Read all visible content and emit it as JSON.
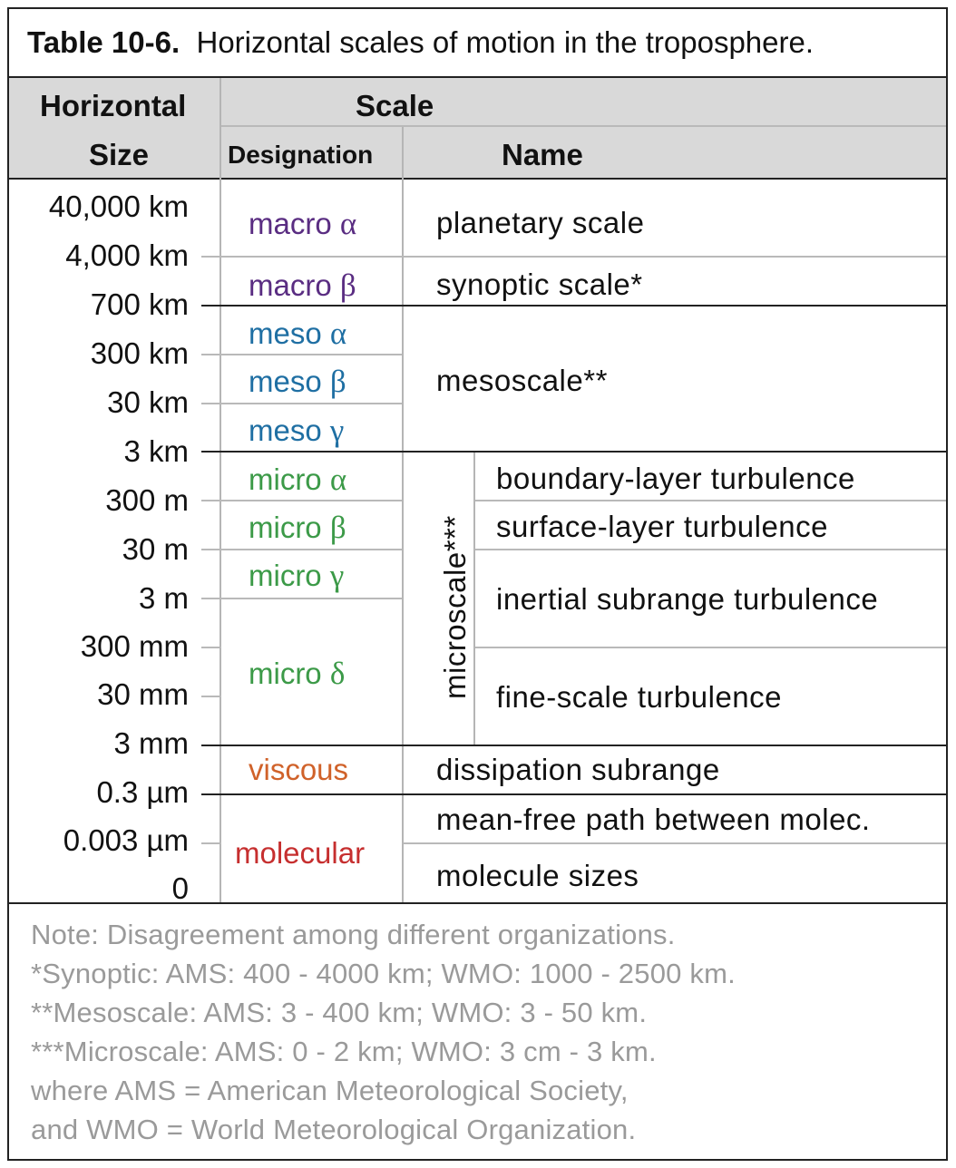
{
  "table_title": {
    "number": "Table 10-6.",
    "caption": "Horizontal scales of motion in the troposphere."
  },
  "header": {
    "horizontal": "Horizontal",
    "size": "Size",
    "scale": "Scale",
    "designation": "Designation",
    "name": "Name"
  },
  "sizes": [
    "40,000 km",
    "4,000 km",
    "700 km",
    "300 km",
    "30 km",
    "3 km",
    "300 m",
    "30 m",
    "3 m",
    "300 mm",
    "30 mm",
    "3 mm",
    "0.3 µm",
    "0.003 µm",
    "0"
  ],
  "designations": {
    "macro_alpha": {
      "word": "macro",
      "greek": "α"
    },
    "macro_beta": {
      "word": "macro",
      "greek": "β"
    },
    "meso_alpha": {
      "word": "meso",
      "greek": "α"
    },
    "meso_beta": {
      "word": "meso",
      "greek": "β"
    },
    "meso_gamma": {
      "word": "meso",
      "greek": "γ"
    },
    "micro_alpha": {
      "word": "micro",
      "greek": "α"
    },
    "micro_beta": {
      "word": "micro",
      "greek": "β"
    },
    "micro_gamma": {
      "word": "micro",
      "greek": "γ"
    },
    "micro_delta": {
      "word": "micro",
      "greek": "δ"
    },
    "viscous": "viscous",
    "molecular": "molecular"
  },
  "names": {
    "planetary": "planetary scale",
    "synoptic": "synoptic scale*",
    "mesoscale": "mesoscale**",
    "microscale": "microscale***",
    "boundary_layer": "boundary-layer turbulence",
    "surface_layer": "surface-layer turbulence",
    "inertial": "inertial subrange turbulence",
    "fine_scale": "fine-scale turbulence",
    "dissipation": "dissipation subrange",
    "mean_free_path": "mean-free path between molec.",
    "molecule_sizes": "molecule sizes"
  },
  "notes": [
    "Note: Disagreement among different organizations.",
    "*Synoptic:  AMS: 400 - 4000 km;   WMO: 1000 - 2500 km.",
    "**Mesoscale:  AMS: 3 - 400 km;    WMO: 3 - 50 km.",
    "***Microscale:  AMS:  0 - 2 km;     WMO: 3 cm - 3 km.",
    "where AMS = American Meteorological Society,",
    "and WMO = World Meteorological Organization."
  ],
  "colors": {
    "macro": "#5a2d82",
    "meso": "#1f6fa3",
    "micro": "#3c9a48",
    "viscous": "#d0622a",
    "molecular": "#c62f2f",
    "note_text": "#9a9a9a",
    "header_band": "#d9d9d9"
  }
}
